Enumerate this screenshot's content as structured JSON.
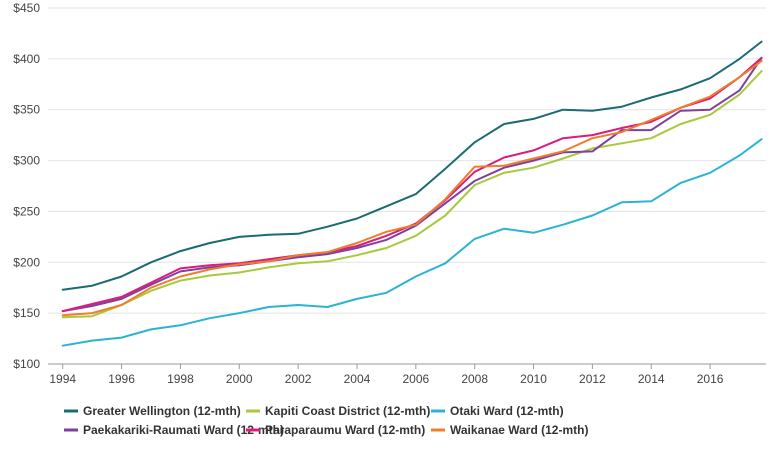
{
  "chart_data": {
    "type": "line",
    "title": "",
    "xlabel": "",
    "ylabel": "",
    "xlim": [
      1993.5,
      2017.9
    ],
    "ylim": [
      100,
      450
    ],
    "grid": "horizontal",
    "legend_position": "bottom",
    "x_ticks": [
      1994,
      1996,
      1998,
      2000,
      2002,
      2004,
      2006,
      2008,
      2010,
      2012,
      2014,
      2016
    ],
    "x_tick_labels": [
      "1994",
      "1996",
      "1998",
      "2000",
      "2002",
      "2004",
      "2006",
      "2008",
      "2010",
      "2012",
      "2014",
      "2016"
    ],
    "y_ticks": [
      100,
      150,
      200,
      250,
      300,
      350,
      400,
      450
    ],
    "y_tick_labels": [
      "$100",
      "$150",
      "$200",
      "$250",
      "$300",
      "$350",
      "$400",
      "$450"
    ],
    "x": [
      1994,
      1995,
      1996,
      1997,
      1998,
      1999,
      2000,
      2001,
      2002,
      2003,
      2004,
      2005,
      2006,
      2007,
      2008,
      2009,
      2010,
      2011,
      2012,
      2013,
      2014,
      2015,
      2016,
      2017,
      2017.75
    ],
    "series": [
      {
        "name": "Greater Wellington (12-mth)",
        "color": "#1b6b73",
        "values": [
          173,
          177,
          186,
          200,
          211,
          219,
          225,
          227,
          228,
          235,
          243,
          255,
          267,
          292,
          318,
          336,
          341,
          350,
          349,
          353,
          362,
          370,
          381,
          400,
          417
        ]
      },
      {
        "name": "Kapiti Coast District (12-mth)",
        "color": "#a7c93b",
        "values": [
          146,
          147,
          158,
          172,
          182,
          187,
          190,
          195,
          199,
          201,
          207,
          214,
          226,
          246,
          276,
          288,
          293,
          302,
          312,
          317,
          322,
          336,
          345,
          365,
          388
        ]
      },
      {
        "name": "Otaki Ward (12-mth)",
        "color": "#2bb3d4",
        "values": [
          118,
          123,
          126,
          134,
          138,
          145,
          150,
          156,
          158,
          156,
          164,
          170,
          186,
          199,
          223,
          233,
          229,
          237,
          246,
          259,
          260,
          278,
          288,
          305,
          321
        ]
      },
      {
        "name": "Paekakariki-Raumati Ward (12-mth)",
        "color": "#7e3fa0",
        "values": [
          152,
          157,
          164,
          178,
          191,
          195,
          197,
          201,
          205,
          208,
          214,
          222,
          236,
          258,
          280,
          293,
          300,
          308,
          309,
          330,
          330,
          349,
          350,
          369,
          401
        ]
      },
      {
        "name": "Paraparaumu Ward (12-mth)",
        "color": "#d81e7a",
        "values": [
          152,
          159,
          166,
          180,
          194,
          197,
          199,
          203,
          207,
          210,
          216,
          226,
          238,
          261,
          289,
          303,
          310,
          322,
          325,
          332,
          338,
          352,
          361,
          382,
          401
        ]
      },
      {
        "name": "Waikanae Ward (12-mth)",
        "color": "#f07d2b",
        "values": [
          148,
          150,
          158,
          175,
          186,
          193,
          198,
          201,
          207,
          210,
          219,
          230,
          237,
          262,
          294,
          295,
          302,
          309,
          322,
          328,
          340,
          352,
          363,
          382,
          398
        ]
      }
    ]
  }
}
